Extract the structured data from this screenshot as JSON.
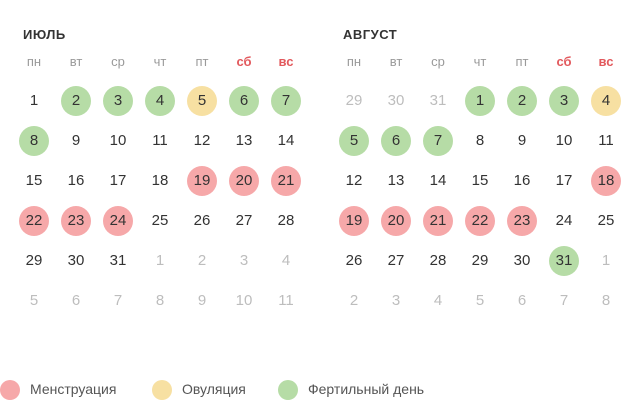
{
  "colors": {
    "menstruation": "#f6a8a9",
    "ovulation": "#f7e0a2",
    "fertile": "#b6dca6",
    "weekend_label": "#e2595d",
    "muted_day": "#bdbdbd"
  },
  "weekdays": [
    {
      "label": "пн",
      "weekend": false
    },
    {
      "label": "вт",
      "weekend": false
    },
    {
      "label": "ср",
      "weekend": false
    },
    {
      "label": "чт",
      "weekend": false
    },
    {
      "label": "пт",
      "weekend": false
    },
    {
      "label": "сб",
      "weekend": true
    },
    {
      "label": "вс",
      "weekend": true
    }
  ],
  "months": [
    {
      "title": "ИЮЛЬ",
      "weeks": [
        [
          {
            "d": "1"
          },
          {
            "d": "2",
            "s": "fertile"
          },
          {
            "d": "3",
            "s": "fertile"
          },
          {
            "d": "4",
            "s": "fertile"
          },
          {
            "d": "5",
            "s": "ovulation"
          },
          {
            "d": "6",
            "s": "fertile"
          },
          {
            "d": "7",
            "s": "fertile"
          }
        ],
        [
          {
            "d": "8",
            "s": "fertile"
          },
          {
            "d": "9"
          },
          {
            "d": "10"
          },
          {
            "d": "11"
          },
          {
            "d": "12"
          },
          {
            "d": "13"
          },
          {
            "d": "14"
          }
        ],
        [
          {
            "d": "15"
          },
          {
            "d": "16"
          },
          {
            "d": "17"
          },
          {
            "d": "18"
          },
          {
            "d": "19",
            "s": "menstruation"
          },
          {
            "d": "20",
            "s": "menstruation"
          },
          {
            "d": "21",
            "s": "menstruation"
          }
        ],
        [
          {
            "d": "22",
            "s": "menstruation"
          },
          {
            "d": "23",
            "s": "menstruation"
          },
          {
            "d": "24",
            "s": "menstruation"
          },
          {
            "d": "25"
          },
          {
            "d": "26"
          },
          {
            "d": "27"
          },
          {
            "d": "28"
          }
        ],
        [
          {
            "d": "29"
          },
          {
            "d": "30"
          },
          {
            "d": "31"
          },
          {
            "d": "1",
            "m": true
          },
          {
            "d": "2",
            "m": true
          },
          {
            "d": "3",
            "m": true
          },
          {
            "d": "4",
            "m": true
          }
        ],
        [
          {
            "d": "5",
            "m": true
          },
          {
            "d": "6",
            "m": true
          },
          {
            "d": "7",
            "m": true
          },
          {
            "d": "8",
            "m": true
          },
          {
            "d": "9",
            "m": true
          },
          {
            "d": "10",
            "m": true
          },
          {
            "d": "11",
            "m": true
          }
        ]
      ]
    },
    {
      "title": "АВГУСТ",
      "weeks": [
        [
          {
            "d": "29",
            "m": true
          },
          {
            "d": "30",
            "m": true
          },
          {
            "d": "31",
            "m": true
          },
          {
            "d": "1",
            "s": "fertile"
          },
          {
            "d": "2",
            "s": "fertile"
          },
          {
            "d": "3",
            "s": "fertile"
          },
          {
            "d": "4",
            "s": "ovulation"
          }
        ],
        [
          {
            "d": "5",
            "s": "fertile"
          },
          {
            "d": "6",
            "s": "fertile"
          },
          {
            "d": "7",
            "s": "fertile"
          },
          {
            "d": "8"
          },
          {
            "d": "9"
          },
          {
            "d": "10"
          },
          {
            "d": "11"
          }
        ],
        [
          {
            "d": "12"
          },
          {
            "d": "13"
          },
          {
            "d": "14"
          },
          {
            "d": "15"
          },
          {
            "d": "16"
          },
          {
            "d": "17"
          },
          {
            "d": "18",
            "s": "menstruation"
          }
        ],
        [
          {
            "d": "19",
            "s": "menstruation"
          },
          {
            "d": "20",
            "s": "menstruation"
          },
          {
            "d": "21",
            "s": "menstruation"
          },
          {
            "d": "22",
            "s": "menstruation"
          },
          {
            "d": "23",
            "s": "menstruation"
          },
          {
            "d": "24"
          },
          {
            "d": "25"
          }
        ],
        [
          {
            "d": "26"
          },
          {
            "d": "27"
          },
          {
            "d": "28"
          },
          {
            "d": "29"
          },
          {
            "d": "30"
          },
          {
            "d": "31",
            "s": "fertile"
          },
          {
            "d": "1",
            "m": true
          }
        ],
        [
          {
            "d": "2",
            "m": true
          },
          {
            "d": "3",
            "m": true
          },
          {
            "d": "4",
            "m": true
          },
          {
            "d": "5",
            "m": true
          },
          {
            "d": "6",
            "m": true
          },
          {
            "d": "7",
            "m": true
          },
          {
            "d": "8",
            "m": true
          }
        ]
      ]
    }
  ],
  "legend": [
    {
      "key": "menstruation",
      "label": "Менструация"
    },
    {
      "key": "ovulation",
      "label": "Овуляция"
    },
    {
      "key": "fertile",
      "label": "Фертильный день"
    }
  ]
}
